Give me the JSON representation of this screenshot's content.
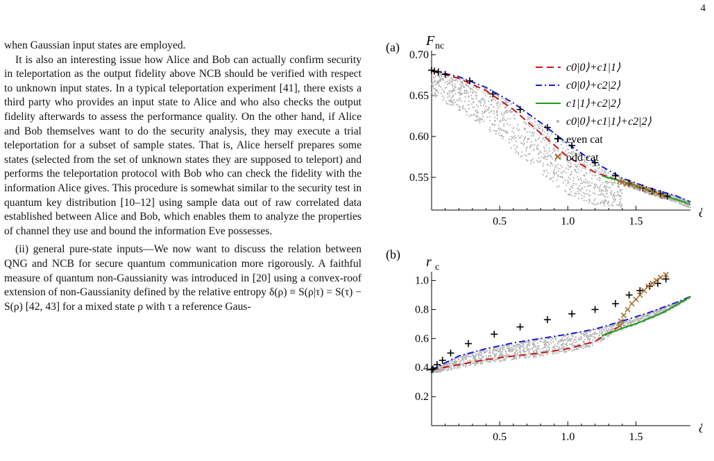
{
  "page": {
    "number": "4"
  },
  "text": {
    "paragraphs": [
      "when Gaussian input states are employed.",
      "It is also an interesting issue how Alice and Bob can actually confirm security in teleportation as the output fidelity above NCB should be verified with respect to unknown input states. In a typical teleportation experiment [41], there exists a third party who provides an input state to Alice and who also checks the output fidelity afterwards to assess the performance quality. On the other hand, if Alice and Bob themselves want to do the security analysis, they may execute a trial teleportation for a subset of sample states. That is, Alice herself prepares some states (selected from the set of unknown states they are supposed to teleport) and performs the teleportation protocol with Bob who can check the fidelity with the information Alice gives. This procedure is somewhat similar to the security test in quantum key distribution [10–12] using sample data out of raw correlated data established between Alice and Bob, which enables them to analyze the properties of channel they use and bound the information Eve possesses.",
      "(ii) general pure-state inputs—We now want to discuss the relation between QNG and NCB for secure quantum communication more rigorously. A faithful measure of quantum non-Gaussianity was introduced in [20] using a convex-roof extension of non-Gaussianity defined by the relative entropy δ(ρ) ≡ S(ρ|τ) = S(τ) − S(ρ) [42, 43] for a mixed state ρ with τ a reference Gaus-"
    ]
  },
  "chart_data": [
    {
      "panel": "(a)",
      "type": "line",
      "ylabel": "F",
      "ylabel_sub": "nc",
      "xlabel": "δ",
      "xlim": [
        0,
        1.9
      ],
      "ylim": [
        0.51,
        0.705
      ],
      "xticks": [
        "0.5",
        "1.0",
        "1.5"
      ],
      "yticks": [
        "0.55",
        "0.60",
        "0.65",
        "0.70"
      ],
      "legend_position": "top-right",
      "series": [
        {
          "name": "c0|0⟩+c1|1⟩",
          "style": "dashed",
          "color": "#c81414",
          "x": [
            0,
            0.2,
            0.4,
            0.6,
            0.8,
            1.0,
            1.2,
            1.4
          ],
          "y": [
            0.68,
            0.671,
            0.656,
            0.633,
            0.604,
            0.575,
            0.556,
            0.545
          ]
        },
        {
          "name": "c0|0⟩+c2|2⟩",
          "style": "dashdot",
          "color": "#1a1ad2",
          "x": [
            0,
            0.2,
            0.4,
            0.6,
            0.8,
            1.0,
            1.2,
            1.4,
            1.6,
            1.8,
            1.9
          ],
          "y": [
            0.681,
            0.673,
            0.66,
            0.641,
            0.617,
            0.591,
            0.568,
            0.549,
            0.537,
            0.527,
            0.52
          ]
        },
        {
          "name": "c1|1⟩+c2|2⟩",
          "style": "solid",
          "color": "#16a016",
          "x": [
            1.25,
            1.4,
            1.55,
            1.7,
            1.85,
            1.9
          ],
          "y": [
            0.552,
            0.545,
            0.537,
            0.528,
            0.52,
            0.517
          ]
        },
        {
          "name": "c0|0⟩+c1|1⟩+c2|2⟩",
          "style": "scatter",
          "color": "#b0b0b0"
        },
        {
          "name": "even cat",
          "style": "plus",
          "color": "#000000",
          "x": [
            0.0,
            0.02,
            0.05,
            0.1,
            0.28,
            0.45,
            0.65,
            0.85,
            1.03,
            1.2,
            1.35,
            1.45,
            1.55,
            1.62,
            1.68,
            1.73
          ],
          "y": [
            0.681,
            0.68,
            0.679,
            0.676,
            0.668,
            0.652,
            0.633,
            0.611,
            0.589,
            0.568,
            0.552,
            0.543,
            0.537,
            0.533,
            0.53,
            0.527
          ]
        },
        {
          "name": "odd cat",
          "style": "cross",
          "color": "#a66a2a",
          "x": [
            1.38,
            1.4,
            1.43,
            1.46,
            1.5,
            1.54,
            1.58,
            1.62,
            1.66,
            1.7
          ],
          "y": [
            0.545,
            0.544,
            0.542,
            0.541,
            0.539,
            0.537,
            0.535,
            0.532,
            0.53,
            0.527
          ]
        }
      ]
    },
    {
      "panel": "(b)",
      "type": "line",
      "ylabel": "r",
      "ylabel_sub": "c",
      "xlabel": "δ",
      "xlim": [
        0,
        1.9
      ],
      "ylim": [
        0,
        1.06
      ],
      "xticks": [
        "0.5",
        "1.0",
        "1.5"
      ],
      "yticks": [
        "0.2",
        "0.4",
        "0.6",
        "0.8",
        "1.0"
      ],
      "series": [
        {
          "name": "c0|0⟩+c1|1⟩",
          "style": "dashed",
          "color": "#c81414",
          "x": [
            0,
            0.2,
            0.4,
            0.6,
            0.8,
            1.0,
            1.2,
            1.38
          ],
          "y": [
            0.385,
            0.42,
            0.455,
            0.48,
            0.5,
            0.53,
            0.58,
            0.685
          ]
        },
        {
          "name": "c0|0⟩+c2|2⟩",
          "style": "dashdot",
          "color": "#1a1ad2",
          "x": [
            0,
            0.2,
            0.4,
            0.6,
            0.8,
            1.0,
            1.2,
            1.4,
            1.6,
            1.8,
            1.9
          ],
          "y": [
            0.385,
            0.48,
            0.53,
            0.57,
            0.6,
            0.63,
            0.665,
            0.72,
            0.78,
            0.85,
            0.89
          ]
        },
        {
          "name": "c1|1⟩+c2|2⟩",
          "style": "solid",
          "color": "#16a016",
          "x": [
            1.25,
            1.4,
            1.55,
            1.7,
            1.85,
            1.9
          ],
          "y": [
            0.62,
            0.67,
            0.72,
            0.78,
            0.86,
            0.89
          ]
        },
        {
          "name": "c0|0⟩+c1|1⟩+c2|2⟩",
          "style": "scatter",
          "color": "#b0b0b0"
        },
        {
          "name": "even cat",
          "style": "plus",
          "color": "#000000",
          "x": [
            0.0,
            0.01,
            0.04,
            0.08,
            0.14,
            0.27,
            0.46,
            0.65,
            0.85,
            1.03,
            1.2,
            1.35,
            1.45,
            1.53,
            1.6,
            1.66,
            1.72
          ],
          "y": [
            0.385,
            0.39,
            0.42,
            0.45,
            0.5,
            0.565,
            0.63,
            0.68,
            0.73,
            0.77,
            0.8,
            0.84,
            0.9,
            0.93,
            0.96,
            0.98,
            1.01
          ]
        },
        {
          "name": "odd cat",
          "style": "cross",
          "color": "#a66a2a",
          "x": [
            1.38,
            1.39,
            1.41,
            1.44,
            1.47,
            1.5,
            1.53,
            1.56,
            1.59,
            1.62,
            1.65,
            1.68,
            1.72
          ],
          "y": [
            0.69,
            0.72,
            0.76,
            0.8,
            0.84,
            0.87,
            0.9,
            0.93,
            0.96,
            0.98,
            1.0,
            1.02,
            1.04
          ]
        }
      ]
    }
  ]
}
